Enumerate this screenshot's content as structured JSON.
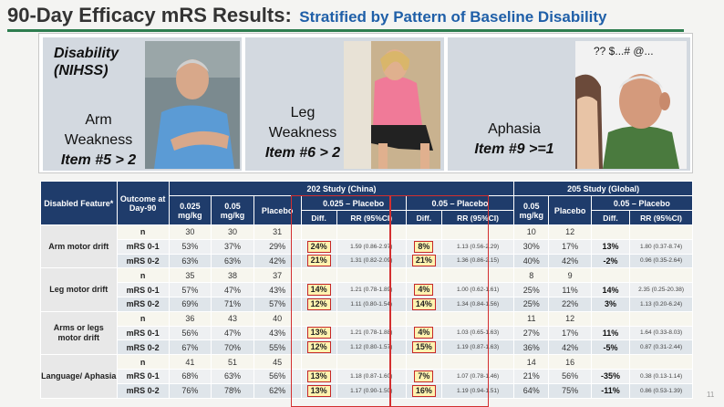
{
  "slide": {
    "title": "90-Day Efficacy mRS Results:",
    "subtitle": "Stratified by Pattern of Baseline Disability",
    "page_number": "11"
  },
  "panels": {
    "disability_label": [
      "Disability",
      "(NIHSS)"
    ],
    "arm": {
      "name": [
        "Arm",
        "Weakness"
      ],
      "item": "Item #5 > 2"
    },
    "leg": {
      "name": [
        "Leg",
        "Weakness"
      ],
      "item": "Item #6 > 2"
    },
    "aphasia": {
      "name": "Aphasia",
      "item": "Item #9 >=1",
      "speech": "?? $...# @..."
    }
  },
  "table": {
    "headers": {
      "feature": "Disabled Feature*",
      "outcome": "Outcome at Day-90",
      "study202": "202 Study (China)",
      "study205": "205 Study (Global)",
      "dose025": "0.025 mg/kg",
      "dose05": "0.05 mg/kg",
      "placebo": "Placebo",
      "cmp025": "0.025 – Placebo",
      "cmp05": "0.05 – Placebo",
      "diff": "Diff.",
      "rr": "RR (95%CI)"
    },
    "groups": [
      {
        "feature": "Arm motor drift",
        "rows": [
          [
            "n",
            "30",
            "30",
            "31",
            "",
            "",
            "",
            "",
            "10",
            "12",
            "",
            ""
          ],
          [
            "mRS 0-1",
            "53%",
            "37%",
            "29%",
            "24%",
            "1.59 (0.86-2.97)",
            "8%",
            "1.13 (0.56-2.29)",
            "30%",
            "17%",
            "13%",
            "1.80 (0.37-8.74)"
          ],
          [
            "mRS 0-2",
            "63%",
            "63%",
            "42%",
            "21%",
            "1.31 (0.82-2.09)",
            "21%",
            "1.36 (0.86-2.15)",
            "40%",
            "42%",
            "-2%",
            "0.96 (0.35-2.64)"
          ]
        ]
      },
      {
        "feature": "Leg motor drift",
        "rows": [
          [
            "n",
            "35",
            "38",
            "37",
            "",
            "",
            "",
            "",
            "8",
            "9",
            "",
            ""
          ],
          [
            "mRS 0-1",
            "57%",
            "47%",
            "43%",
            "14%",
            "1.21 (0.78-1.89)",
            "4%",
            "1.00 (0.62-1.61)",
            "25%",
            "11%",
            "14%",
            "2.35 (0.25-20.38)"
          ],
          [
            "mRS 0-2",
            "69%",
            "71%",
            "57%",
            "12%",
            "1.11 (0.80-1.54)",
            "14%",
            "1.34 (0.84-1.56)",
            "25%",
            "22%",
            "3%",
            "1.13 (0.20-6.24)"
          ]
        ]
      },
      {
        "feature": "Arms or legs motor drift",
        "rows": [
          [
            "n",
            "36",
            "43",
            "40",
            "",
            "",
            "",
            "",
            "11",
            "12",
            "",
            ""
          ],
          [
            "mRS 0-1",
            "56%",
            "47%",
            "43%",
            "13%",
            "1.21 (0.78-1.88)",
            "4%",
            "1.03 (0.65-1.63)",
            "27%",
            "17%",
            "11%",
            "1.64 (0.33-8.03)"
          ],
          [
            "mRS 0-2",
            "67%",
            "70%",
            "55%",
            "12%",
            "1.12 (0.80-1.57)",
            "15%",
            "1.19 (0.87-1.63)",
            "36%",
            "42%",
            "-5%",
            "0.87 (0.31-2.44)"
          ]
        ]
      },
      {
        "feature": "Language/ Aphasia",
        "rows": [
          [
            "n",
            "41",
            "51",
            "45",
            "",
            "",
            "",
            "",
            "14",
            "16",
            "",
            ""
          ],
          [
            "mRS 0-1",
            "68%",
            "63%",
            "56%",
            "13%",
            "1.18 (0.87-1.60)",
            "7%",
            "1.07 (0.78-1.46)",
            "21%",
            "56%",
            "-35%",
            "0.38 (0.13-1.14)"
          ],
          [
            "mRS 0-2",
            "76%",
            "78%",
            "62%",
            "13%",
            "1.17 (0.90-1.50)",
            "16%",
            "1.19 (0.94-1.51)",
            "64%",
            "75%",
            "-11%",
            "0.86 (0.53-1.39)"
          ]
        ]
      }
    ]
  },
  "colors": {
    "title": "#333333",
    "subtitle": "#1f5fa8",
    "rule": "#2e7d4f",
    "header": "#1f3c6b",
    "highlight_border": "#c62828",
    "highlight_fill": "#fff3b0"
  }
}
